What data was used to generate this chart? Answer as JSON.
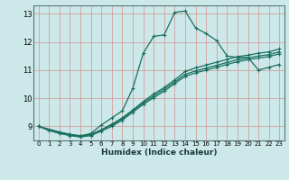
{
  "xlabel": "Humidex (Indice chaleur)",
  "bg_color": "#cce8e8",
  "grid_color": "#d4a0a0",
  "line_color": "#1a7060",
  "xlim": [
    -0.5,
    23.5
  ],
  "ylim": [
    8.5,
    13.3
  ],
  "xticks": [
    0,
    1,
    2,
    3,
    4,
    5,
    6,
    7,
    8,
    9,
    10,
    11,
    12,
    13,
    14,
    15,
    16,
    17,
    18,
    19,
    20,
    21,
    22,
    23
  ],
  "yticks": [
    9,
    10,
    11,
    12,
    13
  ],
  "line1_x": [
    0,
    1,
    2,
    3,
    4,
    5,
    6,
    7,
    8,
    9,
    10,
    11,
    12,
    13,
    14,
    15,
    16,
    17,
    18,
    19,
    20,
    21,
    22,
    23
  ],
  "line1_y": [
    9.0,
    8.85,
    8.75,
    8.7,
    8.65,
    8.75,
    9.05,
    9.3,
    9.55,
    10.35,
    11.6,
    12.2,
    12.25,
    13.05,
    13.1,
    12.5,
    12.3,
    12.05,
    11.5,
    11.45,
    11.45,
    11.0,
    11.1,
    11.2
  ],
  "line2_x": [
    0,
    2,
    3,
    4,
    5,
    6,
    7,
    8,
    9,
    10,
    11,
    12,
    13,
    14,
    15,
    16,
    17,
    18,
    19,
    20,
    21,
    22,
    23
  ],
  "line2_y": [
    9.0,
    8.78,
    8.7,
    8.65,
    8.7,
    8.88,
    9.08,
    9.3,
    9.58,
    9.88,
    10.15,
    10.38,
    10.65,
    10.95,
    11.08,
    11.18,
    11.28,
    11.38,
    11.48,
    11.53,
    11.6,
    11.65,
    11.75
  ],
  "line3_x": [
    0,
    2,
    3,
    4,
    5,
    6,
    7,
    8,
    9,
    10,
    11,
    12,
    13,
    14,
    15,
    16,
    17,
    18,
    19,
    20,
    21,
    22,
    23
  ],
  "line3_y": [
    9.0,
    8.8,
    8.72,
    8.67,
    8.72,
    8.87,
    9.05,
    9.27,
    9.55,
    9.83,
    10.08,
    10.32,
    10.58,
    10.85,
    10.97,
    11.07,
    11.17,
    11.27,
    11.37,
    11.43,
    11.5,
    11.55,
    11.65
  ],
  "line4_x": [
    0,
    2,
    3,
    4,
    5,
    6,
    7,
    8,
    9,
    10,
    11,
    12,
    13,
    14,
    15,
    16,
    17,
    18,
    19,
    20,
    21,
    22,
    23
  ],
  "line4_y": [
    9.0,
    8.75,
    8.67,
    8.62,
    8.67,
    8.83,
    9.0,
    9.22,
    9.5,
    9.78,
    10.02,
    10.25,
    10.52,
    10.78,
    10.9,
    11.0,
    11.1,
    11.2,
    11.3,
    11.37,
    11.43,
    11.48,
    11.58
  ],
  "marker": "+",
  "markersize": 3,
  "linewidth": 0.9
}
